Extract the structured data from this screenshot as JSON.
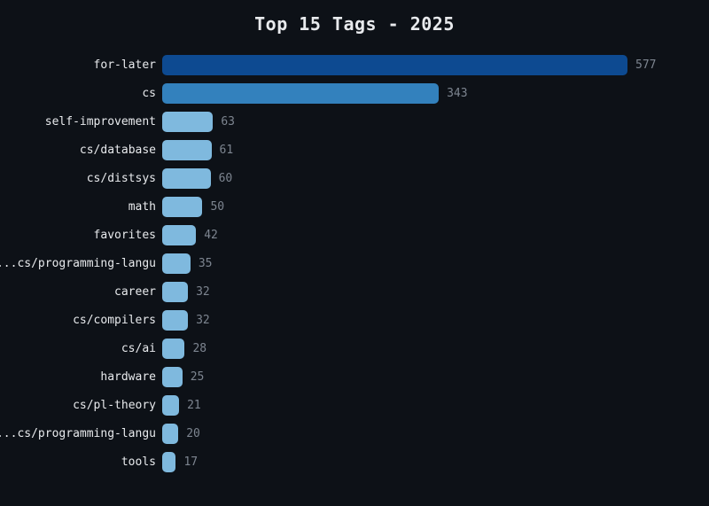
{
  "chart_data": {
    "type": "bar",
    "orientation": "horizontal",
    "title": "Top 15 Tags - 2025",
    "categories": [
      "for-later",
      "cs",
      "self-improvement",
      "cs/database",
      "cs/distsys",
      "math",
      "favorites",
      "cs/programming-langu...",
      "career",
      "cs/compilers",
      "cs/ai",
      "hardware",
      "cs/pl-theory",
      "cs/programming-langu...",
      "tools"
    ],
    "values": [
      577,
      343,
      63,
      61,
      60,
      50,
      42,
      35,
      32,
      32,
      28,
      25,
      21,
      20,
      17
    ],
    "xlim": [
      0,
      577
    ],
    "grid": false,
    "legend": "none",
    "bar_colors": [
      "#0d4a91",
      "#3381bd",
      "#7fb9de",
      "#7fb9de",
      "#7fb9de",
      "#7fb9de",
      "#7fb9de",
      "#7fb9de",
      "#7fb9de",
      "#7fb9de",
      "#7fb9de",
      "#7fb9de",
      "#7fb9de",
      "#7fb9de",
      "#7fb9de"
    ],
    "colors": {
      "background": "#0d1117",
      "label_text": "#e8eaed",
      "value_text": "#7d8590"
    }
  }
}
